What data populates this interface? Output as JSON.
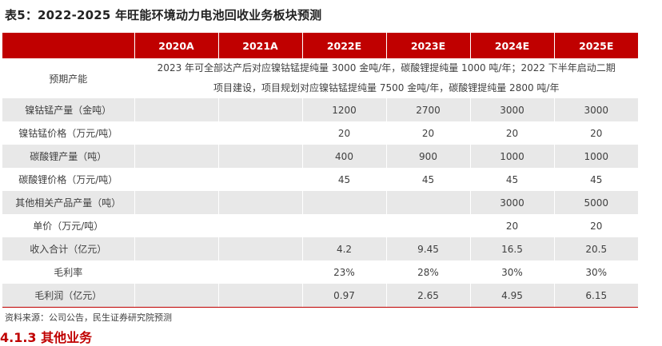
{
  "title": "表5：2022-2025 年旺能环境动力电池回收业务板块预测",
  "table": {
    "headers": [
      "",
      "2020A",
      "2021A",
      "2022E",
      "2023E",
      "2024E",
      "2025E"
    ],
    "plan_row": {
      "label": "预期产能",
      "text_line1": "2023 年可全部达产后对应镍钴锰提纯量 3000 金吨/年，碳酸锂提纯量 1000 吨/年；2022 下半年启动二期",
      "text_line2": "项目建设，项目规划对应镍钴锰提纯量 7500 金吨/年，碳酸锂提纯量 2800 吨/年"
    },
    "rows": [
      {
        "label": "镍钴锰产量（金吨）",
        "values": [
          "",
          "",
          "1200",
          "2700",
          "3000",
          "3000"
        ]
      },
      {
        "label": "镍钴锰价格（万元/吨）",
        "values": [
          "",
          "",
          "20",
          "20",
          "20",
          "20"
        ]
      },
      {
        "label": "碳酸锂产量（吨）",
        "values": [
          "",
          "",
          "400",
          "900",
          "1000",
          "1000"
        ]
      },
      {
        "label": "碳酸锂价格（万元/吨）",
        "values": [
          "",
          "",
          "45",
          "45",
          "45",
          "45"
        ]
      },
      {
        "label": "其他相关产品产量（吨）",
        "values": [
          "",
          "",
          "",
          "",
          "3000",
          "5000"
        ]
      },
      {
        "label": "单价（万元/吨）",
        "values": [
          "",
          "",
          "",
          "",
          "20",
          "20"
        ]
      },
      {
        "label": "收入合计（亿元）",
        "values": [
          "",
          "",
          "4.2",
          "9.45",
          "16.5",
          "20.5"
        ]
      },
      {
        "label": "毛利率",
        "values": [
          "",
          "",
          "23%",
          "28%",
          "30%",
          "30%"
        ]
      },
      {
        "label": "毛利润（亿元）",
        "values": [
          "",
          "",
          "0.97",
          "2.65",
          "4.95",
          "6.15"
        ]
      }
    ]
  },
  "source": "资料来源：公司公告，民生证券研究院预测",
  "next_heading": "4.1.3 其他业务",
  "colors": {
    "header_bg": "#c00000",
    "alt_row_bg": "#e8e8e8",
    "text": "#404040"
  }
}
